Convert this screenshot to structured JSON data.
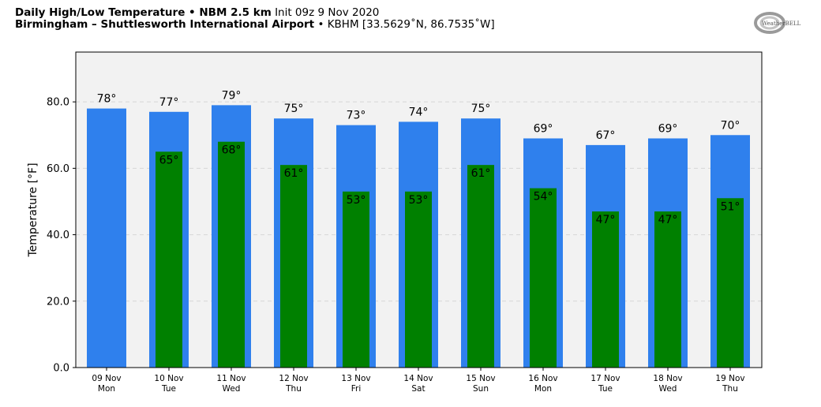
{
  "header": {
    "line1_bold": "Daily High/Low Temperature • NBM 2.5 km",
    "line1_rest": "Init 09z 9 Nov 2020",
    "line2_bold": "Birmingham – Shuttlesworth International Airport",
    "line2_rest": "• KBHM [33.5629˚N, 86.7535˚W]",
    "logo_text": "WeatherBELL"
  },
  "colors": {
    "high": "#2f80ed",
    "low": "#008000",
    "plot_bg": "#f2f2f2"
  },
  "chart_data": {
    "type": "bar",
    "ylabel": "Temperature [°F]",
    "ylim": [
      0,
      95
    ],
    "yticks": [
      0,
      20,
      40,
      60,
      80
    ],
    "ytick_labels": [
      "0.0",
      "20.0",
      "40.0",
      "60.0",
      "80.0"
    ],
    "grid": "horizontal dashed",
    "categories": [
      {
        "date": "09 Nov",
        "day": "Mon"
      },
      {
        "date": "10 Nov",
        "day": "Tue"
      },
      {
        "date": "11 Nov",
        "day": "Wed"
      },
      {
        "date": "12 Nov",
        "day": "Thu"
      },
      {
        "date": "13 Nov",
        "day": "Fri"
      },
      {
        "date": "14 Nov",
        "day": "Sat"
      },
      {
        "date": "15 Nov",
        "day": "Sun"
      },
      {
        "date": "16 Nov",
        "day": "Mon"
      },
      {
        "date": "17 Nov",
        "day": "Tue"
      },
      {
        "date": "18 Nov",
        "day": "Wed"
      },
      {
        "date": "19 Nov",
        "day": "Thu"
      }
    ],
    "series": [
      {
        "key": "high",
        "values": [
          78,
          77,
          79,
          75,
          73,
          74,
          75,
          69,
          67,
          69,
          70
        ],
        "labels": [
          "78°",
          "77°",
          "79°",
          "75°",
          "73°",
          "74°",
          "75°",
          "69°",
          "67°",
          "69°",
          "70°"
        ]
      },
      {
        "key": "low",
        "values": [
          null,
          65,
          68,
          61,
          53,
          53,
          61,
          54,
          47,
          47,
          51
        ],
        "labels": [
          null,
          "65°",
          "68°",
          "61°",
          "53°",
          "53°",
          "61°",
          "54°",
          "47°",
          "47°",
          "51°"
        ]
      }
    ]
  }
}
